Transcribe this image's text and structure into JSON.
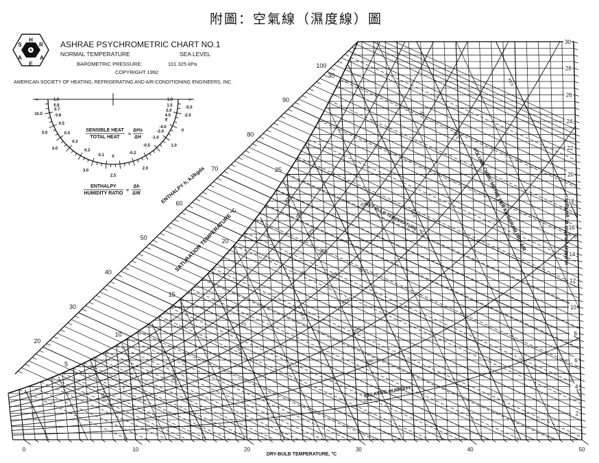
{
  "page_title": "附圖：空氣線（濕度線）圖",
  "header": {
    "logo_letters": [
      "H",
      "R",
      "A",
      "E",
      "A",
      "S"
    ],
    "title": "ASHRAE PSYCHROMETRIC CHART NO.1",
    "subtitle_left": "NORMAL TEMPERATURE",
    "subtitle_right": "SEA LEVEL",
    "pressure_label": "BAROMETRIC PRESSURE:",
    "pressure_value": "101.325 kPa",
    "copyright": "COPYRIGHT 1992",
    "society": "AMERICAN SOCIETY OF HEATING, REFRIGERATING AND AIR-CONDITIONING ENGINEERS, INC."
  },
  "protractor": {
    "sensible_num": "SENSIBLE HEAT",
    "sensible_den": "TOTAL HEAT",
    "sensible_rhs_num": "ΔHs",
    "sensible_rhs_den": "ΔH",
    "enthalpy_num": "ENTHALPY",
    "enthalpy_den": "HUMIDITY RATIO",
    "enthalpy_rhs_num": "Δh",
    "enthalpy_rhs_den": "ΔW",
    "inner_labels": [
      "1.0",
      "0.8",
      "0.7",
      "0.6",
      "0.5",
      "0.4",
      "0.3",
      "0.2",
      "0.1",
      "0",
      "-0.2",
      "-0.5",
      "-1.0",
      "-2.0",
      "-4.0",
      "8",
      "4.0",
      "2.0",
      "1.5",
      "1.0"
    ],
    "outer_labels": [
      "∞",
      "10.0",
      "5.0",
      "4.0",
      "3.0",
      "2.5",
      "2.0",
      "1.0",
      "0",
      "-2.0",
      "-5.0",
      "-∞"
    ]
  },
  "chart_data": {
    "type": "line",
    "title": "ASHRAE PSYCHROMETRIC CHART NO.1",
    "xlabel": "DRY-BULB TEMPERATURE, °C",
    "ylabel": "HUMIDITY RATIO W, gw/kgda",
    "xlim": [
      0,
      50
    ],
    "ylim": [
      0,
      30
    ],
    "x_ticks": [
      "0",
      "10",
      "20",
      "30",
      "40",
      "50"
    ],
    "y_ticks": [
      "2",
      "4",
      "6",
      "8",
      "10",
      "12",
      "14",
      "16",
      "18",
      "20",
      "22",
      "24",
      "26",
      "28",
      "30"
    ],
    "grid": true,
    "barometric_pressure_kpa": 101.325,
    "enthalpy_label": "ENTHALPY h, kJ/kgda",
    "enthalpy_ticks": [
      "20",
      "30",
      "40",
      "50",
      "60",
      "70",
      "80",
      "90",
      "100"
    ],
    "saturation_label": "SATURATION TEMPERATURE °C",
    "saturation_ticks": [
      "5",
      "10",
      "15",
      "20",
      "25",
      "30"
    ],
    "wet_bulb_label": "WET BULB TEMPERATURE, °C",
    "wet_bulb_ticks": [
      "5",
      "10",
      "15",
      "20",
      "25",
      "30"
    ],
    "rh_label": "RELATIVE HUMIDITY",
    "rh_curves": [
      "10%",
      "20%",
      "30%",
      "40%",
      "50%",
      "60%",
      "70%",
      "80%",
      "90%"
    ],
    "volume_label": "VOLUME CUBIC METRE PER KILOGRAM DRY AIR",
    "volume_ticks": [
      "0.78",
      "0.80",
      "0.82",
      "0.84",
      "0.86",
      "0.88",
      "0.90",
      "0.92",
      "0.94"
    ]
  }
}
